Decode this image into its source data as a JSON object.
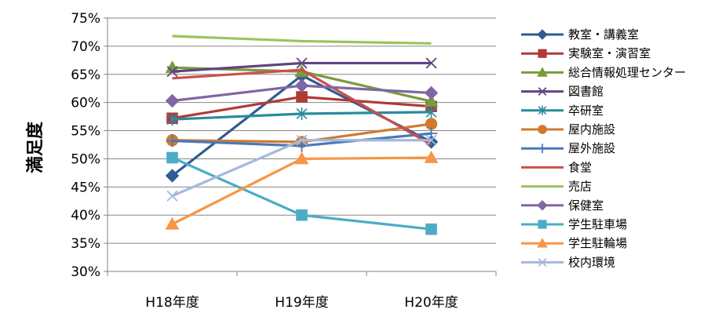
{
  "chart_data": {
    "type": "line",
    "title": "",
    "xlabel": "",
    "ylabel": "満足度",
    "ylim": [
      30,
      75
    ],
    "yticks": [
      30,
      35,
      40,
      45,
      50,
      55,
      60,
      65,
      70,
      75
    ],
    "ytick_format": "percent",
    "grid": "horizontal",
    "legend_position": "right",
    "categories": [
      "H18年度",
      "H19年度",
      "H20年度"
    ],
    "series": [
      {
        "name": "教室・講義室",
        "color": "#2F5C91",
        "marker": "diamond",
        "values": [
          47.0,
          64.8,
          53.0
        ]
      },
      {
        "name": "実験室・演習室",
        "color": "#B03A36",
        "marker": "square",
        "values": [
          57.2,
          61.0,
          59.3
        ]
      },
      {
        "name": "総合情報処理センター",
        "color": "#7B9A3C",
        "marker": "triangle",
        "values": [
          66.2,
          65.5,
          60.2
        ]
      },
      {
        "name": "図書館",
        "color": "#5E4581",
        "marker": "x",
        "values": [
          65.5,
          67.0,
          67.0
        ]
      },
      {
        "name": "卒研室",
        "color": "#2A8B9C",
        "marker": "star",
        "values": [
          57.0,
          58.0,
          58.3
        ]
      },
      {
        "name": "屋内施設",
        "color": "#D07A30",
        "marker": "circle",
        "values": [
          53.3,
          53.0,
          56.2
        ]
      },
      {
        "name": "屋外施設",
        "color": "#4A79B8",
        "marker": "plus",
        "values": [
          53.2,
          52.3,
          54.5
        ]
      },
      {
        "name": "食堂",
        "color": "#C9504D",
        "marker": "none",
        "values": [
          64.3,
          65.8,
          52.5
        ]
      },
      {
        "name": "売店",
        "color": "#9BC45C",
        "marker": "none",
        "values": [
          71.8,
          70.9,
          70.5
        ]
      },
      {
        "name": "保健室",
        "color": "#8066A2",
        "marker": "diamond",
        "values": [
          60.3,
          63.0,
          61.7
        ]
      },
      {
        "name": "学生駐車場",
        "color": "#4BACC6",
        "marker": "square",
        "values": [
          50.2,
          40.0,
          37.5
        ]
      },
      {
        "name": "学生駐輪場",
        "color": "#F79646",
        "marker": "triangle",
        "values": [
          38.4,
          50.0,
          50.2
        ]
      },
      {
        "name": "校内環境",
        "color": "#A5B8DD",
        "marker": "x",
        "values": [
          43.4,
          53.3,
          53.3
        ]
      }
    ]
  }
}
